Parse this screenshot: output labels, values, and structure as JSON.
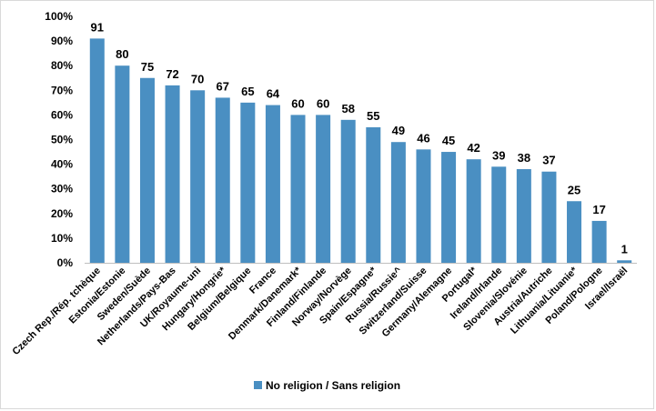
{
  "chart_data": {
    "type": "bar",
    "title": "",
    "xlabel": "",
    "ylabel": "",
    "ylim": [
      0,
      100
    ],
    "y_ticks": [
      "0%",
      "10%",
      "20%",
      "30%",
      "40%",
      "50%",
      "60%",
      "70%",
      "80%",
      "90%",
      "100%"
    ],
    "grid": false,
    "legend_position": "bottom",
    "bar_color": "#4a8fc2",
    "categories": [
      "Czech Rep./Rép. tchèque",
      "Estonia/Estonie",
      "Sweden/Suède",
      "Netherlands/Pays-Bas",
      "UK/Royaume-uni",
      "Hungary/Hongrie*",
      "Belgium/Belgique",
      "France",
      "Denmark/Danemark*",
      "Finland/Finlande",
      "Norway/Norvège",
      "Spain/Espagne*",
      "Russia/Russie^",
      "Switzerland/Suisse",
      "Germany/Alemagne",
      "Portugal*",
      "Ireland/Irlande",
      "Slovenia/Slovénie",
      "Austria/Autriche",
      "Lithuania/Lituanie*",
      "Poland/Pologne",
      "Israel/Israël"
    ],
    "series": [
      {
        "name": "No religion / Sans religion",
        "values": [
          91,
          80,
          75,
          72,
          70,
          67,
          65,
          64,
          60,
          60,
          58,
          55,
          49,
          46,
          45,
          42,
          39,
          38,
          37,
          25,
          17,
          1
        ]
      }
    ]
  }
}
